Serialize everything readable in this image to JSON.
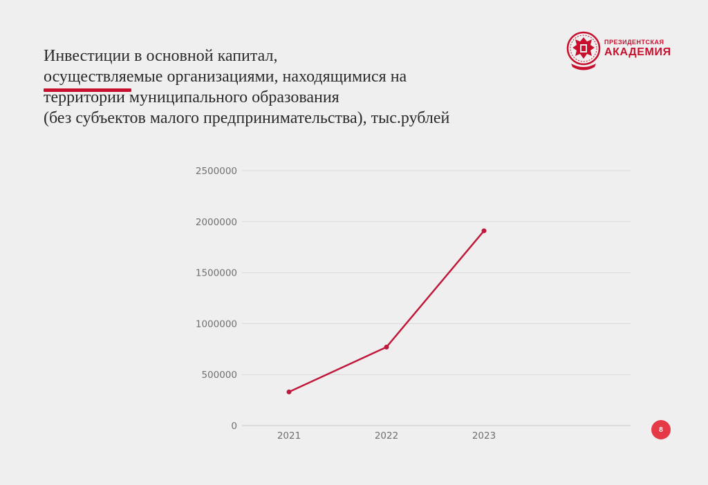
{
  "title": {
    "lines": [
      "Инвестиции в основной капитал,",
      "осуществляемые организациями, находящимися на",
      "территории муниципального образования",
      "(без субъектов малого предпринимательства), тыс.рублей"
    ]
  },
  "logo": {
    "top_text": "ПРЕЗИДЕНТСКАЯ",
    "bottom_text": "АКАДЕМИЯ"
  },
  "page_number": "8",
  "colors": {
    "accent": "#c8102e",
    "line": "#c0183a",
    "grid": "#d9d9d9",
    "badge": "#e63946"
  },
  "chart_data": {
    "type": "line",
    "categories": [
      "2021",
      "2022",
      "2023"
    ],
    "series": [
      {
        "values": [
          330000,
          770000,
          1910000
        ]
      }
    ],
    "y_ticks": [
      "0",
      "500000",
      "1000000",
      "1500000",
      "2000000",
      "2500000"
    ],
    "ylim": [
      0,
      2500000
    ],
    "grid": true,
    "legend": "none"
  }
}
